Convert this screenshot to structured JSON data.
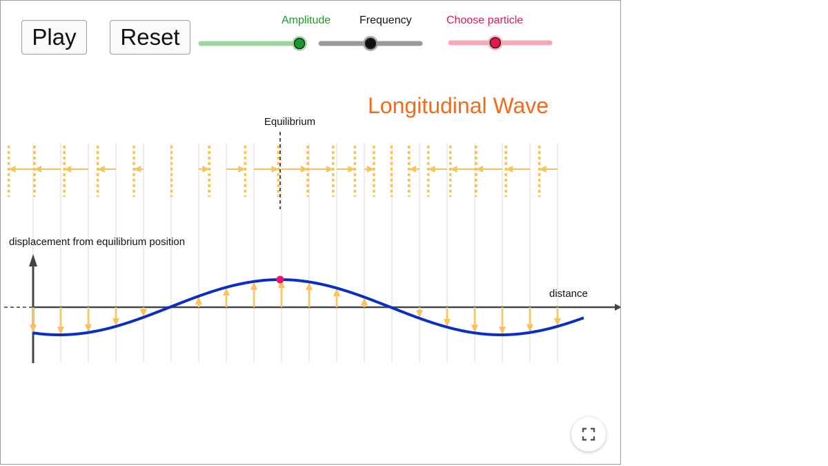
{
  "controls": {
    "play_label": "Play",
    "reset_label": "Reset"
  },
  "sliders": {
    "amplitude": {
      "label": "Amplitude",
      "value": 1.0,
      "color": "#1a9a2a",
      "track_color": "#9ed79c"
    },
    "frequency": {
      "label": "Frequency",
      "value": 0.5,
      "color": "#111111",
      "track_color": "#9a9a9a"
    },
    "particle": {
      "label": "Choose particle",
      "value": 0.45,
      "color": "#e8144a",
      "track_color": "#f5a8b6"
    }
  },
  "scene": {
    "title": "Longitudinal Wave",
    "equilibrium_label": "Equilibrium",
    "y_axis_label": "displacement from equilibrium position",
    "x_axis_label": "distance",
    "wave_color": "#0a2ec2",
    "particle_color": "#f7c34a",
    "arrow_color": "#f9c25f",
    "selected_color": "#e8146e",
    "title_color": "#f26b1c"
  },
  "fullscreen": {
    "icon": "fullscreen-icon"
  }
}
